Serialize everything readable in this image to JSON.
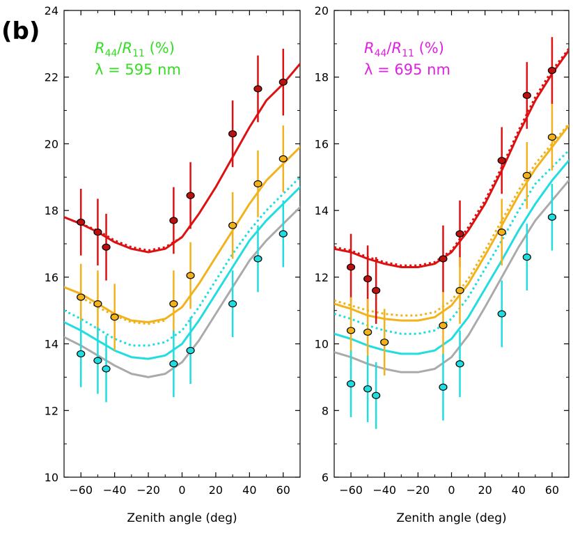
{
  "figure_label": "(b)",
  "chart_data": [
    {
      "type": "line",
      "panel": "left",
      "xlabel": "Zenith angle (deg)",
      "ylabel": "",
      "xlim": [
        -70,
        70
      ],
      "ylim": [
        10,
        24
      ],
      "xticks": [
        -60,
        -40,
        -20,
        0,
        20,
        40,
        60
      ],
      "yticks": [
        10,
        12,
        14,
        16,
        18,
        20,
        22,
        24
      ],
      "annotation": {
        "ratio_base": "R",
        "ratio_sub1": "44",
        "ratio_sep": "/",
        "ratio_sub2": "11",
        "ratio_unit": " (%)",
        "lambda_text": "λ = 595 nm",
        "color": "#33dd22"
      },
      "series": [
        {
          "name": "red",
          "color": "#dd1111",
          "fill": "#bb1111",
          "style": "solid",
          "x": [
            -70,
            -60,
            -50,
            -40,
            -30,
            -20,
            -10,
            0,
            10,
            20,
            30,
            40,
            50,
            60,
            70
          ],
          "values": [
            17.8,
            17.6,
            17.35,
            17.05,
            16.85,
            16.75,
            16.85,
            17.2,
            17.9,
            18.7,
            19.6,
            20.5,
            21.3,
            21.8,
            22.4
          ]
        },
        {
          "name": "red-dotted",
          "color": "#dd1111",
          "style": "dotted",
          "x": [
            -60,
            -50,
            -40,
            -30,
            -20,
            -10,
            0
          ],
          "values": [
            17.6,
            17.4,
            17.1,
            16.9,
            16.8,
            16.9,
            17.2
          ]
        },
        {
          "name": "orange",
          "color": "#f2b21c",
          "fill": "#f2b21c",
          "style": "solid",
          "x": [
            -70,
            -60,
            -50,
            -40,
            -30,
            -20,
            -10,
            0,
            10,
            20,
            30,
            40,
            50,
            60,
            70
          ],
          "values": [
            15.7,
            15.5,
            15.2,
            14.9,
            14.7,
            14.65,
            14.75,
            15.1,
            15.8,
            16.6,
            17.4,
            18.2,
            18.9,
            19.4,
            19.9
          ]
        },
        {
          "name": "orange-dotted",
          "color": "#f2b21c",
          "style": "dotted",
          "x": [
            -60,
            -50,
            -40,
            -30,
            -20,
            -10
          ],
          "values": [
            15.4,
            15.1,
            14.85,
            14.65,
            14.6,
            14.7
          ]
        },
        {
          "name": "cyan-dotted",
          "color": "#22dde0",
          "style": "dotted",
          "x": [
            -70,
            -60,
            -50,
            -40,
            -30,
            -20,
            -10,
            0,
            10,
            20,
            30,
            40,
            50,
            60,
            70
          ],
          "values": [
            15.0,
            14.75,
            14.45,
            14.15,
            13.95,
            13.95,
            14.05,
            14.4,
            15.1,
            15.9,
            16.7,
            17.4,
            18.0,
            18.5,
            19.0
          ]
        },
        {
          "name": "cyan",
          "color": "#22dde0",
          "fill": "#22dde0",
          "style": "solid",
          "x": [
            -70,
            -60,
            -50,
            -40,
            -30,
            -20,
            -10,
            0,
            10,
            20,
            30,
            40,
            50,
            60,
            70
          ],
          "values": [
            14.65,
            14.4,
            14.1,
            13.8,
            13.6,
            13.55,
            13.65,
            14.0,
            14.7,
            15.5,
            16.3,
            17.1,
            17.7,
            18.2,
            18.7
          ]
        },
        {
          "name": "gray",
          "color": "#aaaaaa",
          "style": "solid",
          "x": [
            -70,
            -60,
            -50,
            -40,
            -30,
            -20,
            -10,
            0,
            10,
            20,
            30,
            40,
            50,
            60,
            70
          ],
          "values": [
            14.2,
            13.95,
            13.65,
            13.35,
            13.1,
            13.0,
            13.1,
            13.45,
            14.1,
            14.9,
            15.7,
            16.5,
            17.1,
            17.6,
            18.1
          ]
        }
      ],
      "points": [
        {
          "series": "red",
          "x": [
            -60,
            -50,
            -45,
            -5,
            5,
            30,
            45,
            60
          ],
          "y": [
            17.65,
            17.35,
            16.9,
            17.7,
            18.45,
            20.3,
            21.65,
            21.85
          ],
          "err": [
            1.0,
            1.0,
            1.0,
            1.0,
            1.0,
            1.0,
            1.0,
            1.0
          ]
        },
        {
          "series": "orange",
          "x": [
            -60,
            -50,
            -40,
            -5,
            5,
            30,
            45,
            60
          ],
          "y": [
            15.4,
            15.2,
            14.8,
            15.2,
            16.05,
            17.55,
            18.8,
            19.55
          ],
          "err": [
            1.0,
            1.0,
            1.0,
            1.0,
            1.0,
            1.0,
            1.0,
            1.0
          ]
        },
        {
          "series": "cyan",
          "x": [
            -60,
            -50,
            -45,
            -5,
            5,
            30,
            45,
            60
          ],
          "y": [
            13.7,
            13.5,
            13.25,
            13.4,
            13.8,
            15.2,
            16.55,
            17.3
          ],
          "err": [
            1.0,
            1.0,
            1.0,
            1.0,
            1.0,
            1.0,
            1.0,
            1.0
          ]
        }
      ]
    },
    {
      "type": "line",
      "panel": "right",
      "xlabel": "Zenith angle (deg)",
      "ylabel": "",
      "xlim": [
        -70,
        70
      ],
      "ylim": [
        6,
        20
      ],
      "xticks": [
        -60,
        -40,
        -20,
        0,
        20,
        40,
        60
      ],
      "yticks": [
        6,
        8,
        10,
        12,
        14,
        16,
        18,
        20
      ],
      "annotation": {
        "ratio_base": "R",
        "ratio_sub1": "44",
        "ratio_sep": "/",
        "ratio_sub2": "11",
        "ratio_unit": " (%)",
        "lambda_text": "λ = 695 nm",
        "color": "#e020e0"
      },
      "series": [
        {
          "name": "red",
          "color": "#dd1111",
          "fill": "#bb1111",
          "style": "solid",
          "x": [
            -70,
            -60,
            -50,
            -40,
            -30,
            -20,
            -10,
            0,
            10,
            20,
            30,
            40,
            50,
            60,
            70
          ],
          "values": [
            12.85,
            12.75,
            12.55,
            12.4,
            12.3,
            12.3,
            12.4,
            12.75,
            13.4,
            14.2,
            15.2,
            16.3,
            17.3,
            18.1,
            18.8
          ]
        },
        {
          "name": "red-dotted",
          "color": "#dd1111",
          "style": "dotted",
          "x": [
            -70,
            -60,
            -50,
            -40,
            -30,
            -20,
            -10,
            0,
            10,
            20,
            30,
            40,
            50,
            60,
            70
          ],
          "values": [
            12.9,
            12.8,
            12.6,
            12.45,
            12.35,
            12.35,
            12.45,
            12.8,
            13.5,
            14.3,
            15.3,
            16.4,
            17.4,
            18.2,
            18.85
          ]
        },
        {
          "name": "orange-dotted",
          "color": "#f2b21c",
          "style": "dotted",
          "x": [
            -70,
            -60,
            -50,
            -40,
            -30,
            -20,
            -10,
            0,
            10,
            20,
            30,
            40,
            50,
            60,
            70
          ],
          "values": [
            11.3,
            11.15,
            11.0,
            10.9,
            10.85,
            10.85,
            10.95,
            11.3,
            11.95,
            12.8,
            13.7,
            14.6,
            15.4,
            16.0,
            16.6
          ]
        },
        {
          "name": "orange",
          "color": "#f2b21c",
          "fill": "#f2b21c",
          "style": "solid",
          "x": [
            -70,
            -60,
            -50,
            -40,
            -30,
            -20,
            -10,
            0,
            10,
            20,
            30,
            40,
            50,
            60,
            70
          ],
          "values": [
            11.2,
            11.05,
            10.85,
            10.75,
            10.7,
            10.7,
            10.8,
            11.15,
            11.8,
            12.65,
            13.55,
            14.45,
            15.25,
            15.9,
            16.55
          ]
        },
        {
          "name": "cyan-dotted",
          "color": "#22dde0",
          "style": "dotted",
          "x": [
            -70,
            -60,
            -50,
            -40,
            -30,
            -20,
            -10,
            0,
            10,
            20,
            30,
            40,
            50,
            60,
            70
          ],
          "values": [
            10.9,
            10.75,
            10.55,
            10.4,
            10.3,
            10.3,
            10.4,
            10.75,
            11.4,
            12.25,
            13.1,
            14.0,
            14.8,
            15.3,
            15.8
          ]
        },
        {
          "name": "cyan",
          "color": "#22dde0",
          "fill": "#22dde0",
          "style": "solid",
          "x": [
            -70,
            -60,
            -50,
            -40,
            -30,
            -20,
            -10,
            0,
            10,
            20,
            30,
            40,
            50,
            60,
            70
          ],
          "values": [
            10.3,
            10.15,
            9.95,
            9.8,
            9.7,
            9.7,
            9.8,
            10.15,
            10.8,
            11.65,
            12.5,
            13.4,
            14.2,
            14.9,
            15.5
          ]
        },
        {
          "name": "gray",
          "color": "#aaaaaa",
          "style": "solid",
          "x": [
            -70,
            -60,
            -50,
            -40,
            -30,
            -20,
            -10,
            0,
            10,
            20,
            30,
            40,
            50,
            60,
            70
          ],
          "values": [
            9.75,
            9.6,
            9.4,
            9.25,
            9.15,
            9.15,
            9.25,
            9.6,
            10.25,
            11.1,
            12.0,
            12.9,
            13.7,
            14.3,
            14.9
          ]
        }
      ],
      "points": [
        {
          "series": "red",
          "x": [
            -60,
            -50,
            -45,
            -5,
            5,
            30,
            45,
            60
          ],
          "y": [
            12.3,
            11.95,
            11.6,
            12.55,
            13.3,
            15.5,
            17.45,
            18.2
          ],
          "err": [
            1.0,
            1.0,
            1.0,
            1.0,
            1.0,
            1.0,
            1.0,
            1.0
          ]
        },
        {
          "series": "orange",
          "x": [
            -60,
            -50,
            -40,
            -5,
            5,
            30,
            45,
            60
          ],
          "y": [
            10.4,
            10.35,
            10.05,
            10.55,
            11.6,
            13.35,
            15.05,
            16.2
          ],
          "err": [
            1.0,
            1.0,
            1.0,
            1.0,
            1.0,
            1.0,
            1.0,
            1.0
          ]
        },
        {
          "series": "cyan",
          "x": [
            -60,
            -50,
            -45,
            -5,
            5,
            30,
            45,
            60
          ],
          "y": [
            8.8,
            8.65,
            8.45,
            8.7,
            9.4,
            10.9,
            12.6,
            13.8
          ],
          "err": [
            1.0,
            1.0,
            1.0,
            1.0,
            1.0,
            1.0,
            1.0,
            1.0
          ]
        }
      ]
    }
  ]
}
